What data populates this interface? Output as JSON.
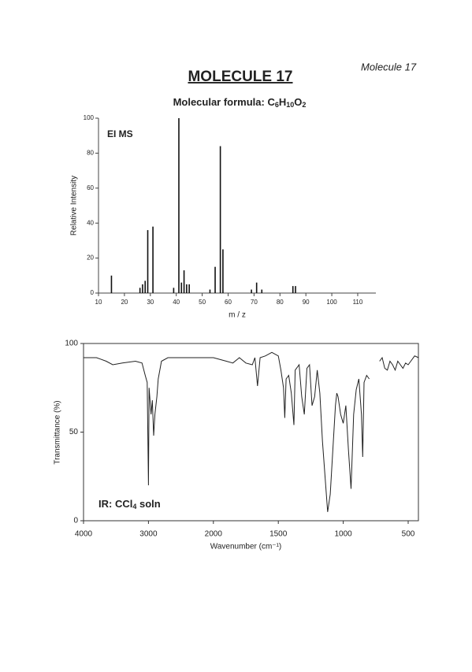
{
  "header": {
    "corner": "Molecule 17",
    "title": "MOLECULE 17",
    "formula": [
      "Molecular formula: C",
      "6",
      "H",
      "10",
      "O",
      "2"
    ]
  },
  "chart_data": [
    {
      "type": "bar",
      "annotation": "EI MS",
      "xlabel": "m / z",
      "ylabel": "Relative Intensity",
      "color": "#111111",
      "x": [
        15,
        26,
        27,
        28,
        29,
        31,
        39,
        41,
        42,
        43,
        44,
        45,
        53,
        55,
        57,
        58,
        69,
        71,
        73,
        85,
        86
      ],
      "values": [
        10,
        3,
        5,
        7,
        36,
        38,
        3,
        100,
        6,
        13,
        5,
        5,
        2,
        15,
        84,
        25,
        2,
        6,
        2,
        4,
        4
      ],
      "xlim": [
        10,
        117
      ],
      "ylim": [
        0,
        100
      ],
      "xticks": [
        10,
        20,
        30,
        40,
        50,
        60,
        70,
        80,
        90,
        100,
        110
      ],
      "yticks": [
        0,
        20,
        40,
        60,
        80,
        100
      ]
    },
    {
      "type": "line",
      "annotation": [
        "IR: CCl",
        "4",
        " soln"
      ],
      "xlabel": "Wavenumber (cm⁻¹)",
      "ylabel": "Transmittance (%)",
      "xlim": [
        4000,
        420
      ],
      "ylim": [
        0,
        100
      ],
      "xticks": [
        4000,
        3000,
        2000,
        1500,
        1000,
        500
      ],
      "yticks": [
        0,
        50,
        100
      ],
      "series": [
        {
          "color": "#222222",
          "x": [
            4000,
            3800,
            3650,
            3550,
            3400,
            3200,
            3100,
            3050,
            3020,
            3000,
            2990,
            2960,
            2940,
            2920,
            2900,
            2870,
            2850,
            2800,
            2700,
            2500,
            2200,
            2000,
            1900,
            1850,
            1800,
            1750,
            1700,
            1680,
            1660,
            1640,
            1600,
            1550,
            1500,
            1480,
            1460,
            1450,
            1440,
            1420,
            1400,
            1380,
            1370,
            1340,
            1320,
            1300,
            1280,
            1260,
            1240,
            1220,
            1200,
            1180,
            1160,
            1140,
            1120,
            1100,
            1080,
            1060,
            1050,
            1040,
            1020,
            1000,
            980,
            960,
            940,
            920,
            900,
            880,
            860,
            850,
            840,
            820,
            800,
            770,
            720,
            700,
            680,
            660,
            640,
            620,
            600,
            580,
            560,
            540,
            520,
            500,
            480,
            450,
            420
          ],
          "values": [
            92,
            92,
            90,
            88,
            89,
            90,
            89,
            82,
            78,
            20,
            75,
            60,
            68,
            48,
            60,
            70,
            80,
            90,
            92,
            92,
            92,
            92,
            90,
            89,
            92,
            89,
            88,
            92,
            76,
            92,
            93,
            95,
            93,
            85,
            75,
            58,
            80,
            82,
            72,
            54,
            85,
            88,
            70,
            60,
            86,
            88,
            65,
            70,
            85,
            72,
            45,
            25,
            5,
            15,
            40,
            65,
            72,
            70,
            60,
            55,
            65,
            40,
            18,
            60,
            74,
            80,
            60,
            36,
            78,
            82,
            80,
            null,
            90,
            92,
            86,
            85,
            90,
            88,
            85,
            90,
            88,
            86,
            89,
            88,
            90,
            93,
            92
          ]
        }
      ]
    }
  ]
}
